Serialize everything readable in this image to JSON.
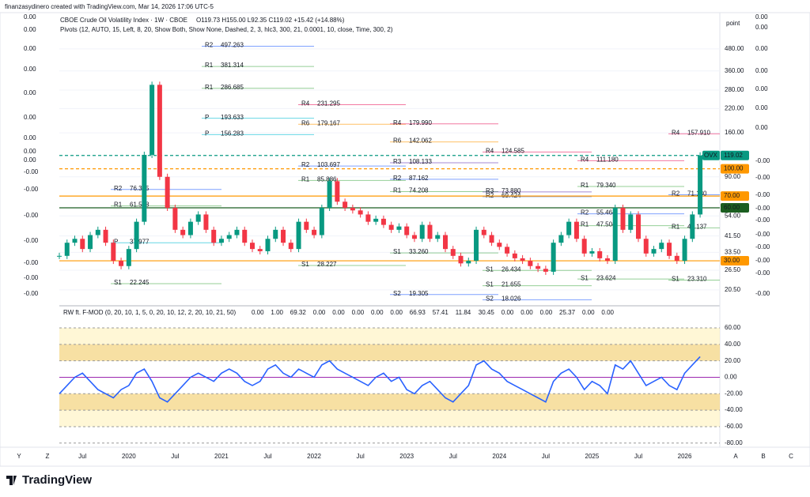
{
  "header": "finanzasydinero created with TradingView.com, Mar 14, 2026 17:06 UTC-5",
  "logo": "TradingView",
  "symbol_tag": "OVX",
  "axis_unit": "point",
  "pivots_legend": "Pivots (12, AUTO, 15, Left, 8, 20, Show Both, Show None, Dashed, 2, 3, hlc3, 300, 21, 0.0001, 10, close, Time, 300, 2)",
  "ohlc": "O119.73 H155.00 L92.35 C119.02 +15.42 (+14.88%)",
  "left_labels": [
    "0.00",
    "0.00",
    "0.00",
    "0.00",
    "0.00",
    "0.00",
    "0.00",
    "0.00",
    "0.00",
    "-0.00",
    "-0.00",
    "-0.00",
    "-0.00",
    "-0.00",
    "-0.00",
    "-0.00"
  ],
  "right_labels": [
    "0.00",
    "0.00",
    "0.00",
    "0.00",
    "0.00",
    "0.00",
    "0.00",
    "-0.00",
    "-0.00",
    "-0.00",
    "-0.00",
    "-0.00",
    "-0.00",
    "-0.00",
    "-0.00",
    "-0.00",
    "-0.00"
  ],
  "corner_letters": [
    "Y",
    "Z",
    "A",
    "B",
    "C"
  ],
  "price_markers": [
    {
      "value": 119.02,
      "label": "119.02",
      "color": "#089981"
    },
    {
      "value": 100,
      "label": "100.00",
      "color": "#ff9800"
    },
    {
      "value": 70,
      "label": "70.00",
      "color": "#ff9800"
    },
    {
      "value": 60,
      "label": "60.00",
      "color": "#1b5e20"
    },
    {
      "value": 30,
      "label": "30.00",
      "color": "#ff9800"
    }
  ],
  "pivots": [
    [
      {
        "name": "R2",
        "value": 76.355,
        "label": "76.355"
      },
      {
        "name": "R1",
        "value": 61.508,
        "label": "61.508"
      },
      {
        "name": "P",
        "value": 37.977,
        "label": "37.977"
      },
      {
        "name": "S1",
        "value": 22.245,
        "label": "22.245"
      }
    ],
    [
      {
        "name": "R2",
        "value": 497.263,
        "label": "497.263"
      },
      {
        "name": "R1",
        "value": 381.314,
        "label": "381.314"
      },
      {
        "name": "R1",
        "value": 286.685,
        "label": "286.685"
      },
      {
        "name": "P",
        "value": 193.633,
        "label": "193.633"
      },
      {
        "name": "P",
        "value": 156.283,
        "label": "156.283"
      }
    ],
    [
      {
        "name": "R4",
        "value": 231.295,
        "label": "231.295"
      },
      {
        "name": "R6",
        "value": 179.167,
        "label": "179.167"
      },
      {
        "name": "R2",
        "value": 103.697,
        "label": "103.697"
      },
      {
        "name": "R1",
        "value": 85.886,
        "label": "85.886"
      },
      {
        "name": "S1",
        "value": 28.227,
        "label": "28.227"
      }
    ],
    [
      {
        "name": "R4",
        "value": 179.99,
        "label": "179.990"
      },
      {
        "name": "R6",
        "value": 142.062,
        "label": "142.062"
      },
      {
        "name": "R3",
        "value": 108.133,
        "label": "108.133"
      },
      {
        "name": "R2",
        "value": 87.162,
        "label": "87.162"
      },
      {
        "name": "R1",
        "value": 74.208,
        "label": "74.208"
      },
      {
        "name": "S1",
        "value": 33.26,
        "label": "33.260"
      },
      {
        "name": "S2",
        "value": 19.305,
        "label": "19.305"
      }
    ],
    [
      {
        "name": "R4",
        "value": 124.585,
        "label": "124.585"
      },
      {
        "name": "R3",
        "value": 73.88,
        "label": "73.880"
      },
      {
        "name": "R2",
        "value": 69.424,
        "label": "69.424"
      },
      {
        "name": "S1",
        "value": 26.434,
        "label": "26.434"
      },
      {
        "name": "S1",
        "value": 21.655,
        "label": "21.655"
      },
      {
        "name": "S2",
        "value": 18.026,
        "label": "18.026"
      }
    ],
    [
      {
        "name": "R4",
        "value": 111.18,
        "label": "111.180"
      },
      {
        "name": "R1",
        "value": 79.34,
        "label": "79.340"
      },
      {
        "name": "R2",
        "value": 55.464,
        "label": "55.464"
      },
      {
        "name": "R1",
        "value": 47.504,
        "label": "47.504"
      },
      {
        "name": "S1",
        "value": 23.624,
        "label": "23.624"
      }
    ],
    [
      {
        "name": "R4",
        "value": 157.91,
        "label": "157.910"
      },
      {
        "name": "R2",
        "value": 71.13,
        "label": "71.130"
      },
      {
        "name": "R1",
        "value": 46.137,
        "label": "46.137"
      },
      {
        "name": "S1",
        "value": 23.31,
        "label": "23.310"
      }
    ]
  ],
  "osc_legend": {
    "title": "RW ft. F-MOD (0, 20, 10, 1, 5, 0, 20, 10, 12, 2, 20, 10, 21, 50)",
    "values": [
      {
        "text": "0.00",
        "color": "#ff9800"
      },
      {
        "text": "1.00",
        "color": "#4caf50"
      },
      {
        "text": "69.32",
        "color": "#9c27b0"
      },
      {
        "text": "0.00",
        "color": "#ff9800"
      },
      {
        "text": "0.00",
        "color": "#9c27b0"
      },
      {
        "text": "0.00",
        "color": "#e91e63"
      },
      {
        "text": "0.00",
        "color": "#9c27b0"
      },
      {
        "text": "0.00",
        "color": "#9c27b0"
      },
      {
        "text": "66.93",
        "color": "#4caf50"
      },
      {
        "text": "57.41",
        "color": "#f23645"
      },
      {
        "text": "11.84",
        "color": "#2962ff"
      },
      {
        "text": "30.45",
        "color": "#ff9800"
      },
      {
        "text": "0.00",
        "color": "#2962ff"
      },
      {
        "text": "0.00",
        "color": "#2962ff"
      },
      {
        "text": "0.00",
        "color": "#2962ff"
      },
      {
        "text": "25.37",
        "color": "#2962ff"
      },
      {
        "text": "0.00",
        "color": "#f23645"
      },
      {
        "text": "0.00",
        "color": "#f23645"
      }
    ]
  },
  "chart_data": [
    {
      "type": "candlestick",
      "title": "CBOE Crude Oil Volatility Index · 1W · CBOE",
      "log_scale": true,
      "x_labels": [
        "Jul",
        "2020",
        "Jul",
        "2021",
        "Jul",
        "2022",
        "Jul",
        "2023",
        "Jul",
        "2024",
        "Jul",
        "2025",
        "Jul",
        "2026"
      ],
      "series": [
        {
          "name": "OVX",
          "up_color": "#089981",
          "down_color": "#f23645",
          "values": [
            32,
            38,
            40,
            35,
            42,
            45,
            38,
            30,
            28,
            35,
            50,
            120,
            300,
            90,
            60,
            45,
            42,
            50,
            55,
            45,
            38,
            40,
            42,
            45,
            38,
            35,
            34,
            40,
            45,
            38,
            35,
            50,
            45,
            42,
            60,
            85,
            65,
            60,
            58,
            55,
            50,
            52,
            48,
            45,
            47,
            42,
            40,
            48,
            40,
            42,
            35,
            32,
            29,
            30,
            45,
            42,
            38,
            36,
            33,
            31,
            30,
            28,
            27,
            26,
            38,
            42,
            50,
            40,
            33,
            34,
            31,
            30,
            60,
            45,
            55,
            40,
            33,
            35,
            38,
            32,
            30,
            40,
            55,
            119.02
          ]
        }
      ],
      "ylim": [
        17,
        740
      ],
      "yticks": [
        {
          "value": 480,
          "label": "480.00"
        },
        {
          "value": 360,
          "label": "360.00"
        },
        {
          "value": 280,
          "label": "280.00"
        },
        {
          "value": 220,
          "label": "220.00"
        },
        {
          "value": 160,
          "label": "160.00"
        },
        {
          "value": 90,
          "label": "90.00"
        },
        {
          "value": 54,
          "label": "54.00"
        },
        {
          "value": 41.5,
          "label": "41.50"
        },
        {
          "value": 33.5,
          "label": "33.50"
        },
        {
          "value": 26.5,
          "label": "26.50"
        },
        {
          "value": 20.5,
          "label": "20.50"
        }
      ]
    },
    {
      "type": "line",
      "series": [
        {
          "name": "RW ft. F-MOD",
          "color": "#2962ff",
          "values": [
            -20,
            -10,
            0,
            5,
            -5,
            -15,
            -20,
            -25,
            -15,
            -10,
            5,
            10,
            -5,
            -25,
            -30,
            -20,
            -10,
            0,
            5,
            0,
            -5,
            5,
            10,
            5,
            -5,
            -10,
            -5,
            10,
            15,
            5,
            0,
            10,
            5,
            0,
            15,
            20,
            10,
            5,
            0,
            -5,
            -10,
            0,
            5,
            -5,
            0,
            -15,
            -20,
            -10,
            -5,
            -15,
            -25,
            -30,
            -20,
            -10,
            15,
            20,
            10,
            5,
            -5,
            -10,
            -15,
            -20,
            -25,
            -30,
            -5,
            5,
            10,
            0,
            -15,
            -5,
            -10,
            -20,
            15,
            10,
            20,
            5,
            -10,
            -5,
            0,
            -10,
            -15,
            5,
            15,
            25
          ]
        }
      ],
      "ylim": [
        -85,
        84
      ],
      "yticks": [
        {
          "value": 60,
          "label": "60.00"
        },
        {
          "value": 40,
          "label": "40.00"
        },
        {
          "value": 20,
          "label": "20.00"
        },
        {
          "value": 0,
          "label": "0.00"
        },
        {
          "value": -20,
          "label": "-20.00"
        },
        {
          "value": -40,
          "label": "-40.00"
        },
        {
          "value": -60,
          "label": "-60.00"
        },
        {
          "value": -80,
          "label": "-80.00"
        }
      ]
    }
  ]
}
